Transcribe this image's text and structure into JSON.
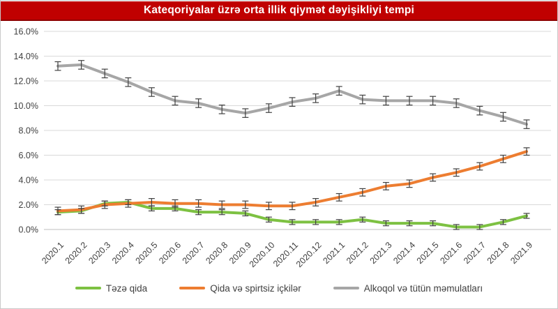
{
  "title": "Kateqoriyalar üzrə orta illik qiymət dəyişikliyi tempi",
  "colors": {
    "title_bg": "#c00000",
    "title_text": "#ffffff",
    "grid": "#d9d9d9",
    "zero_line": "#bfbfbf",
    "axis_text": "#404040",
    "error_bar": "#404040"
  },
  "chart_data": {
    "type": "line",
    "title": "Kateqoriyalar üzrə orta illik qiymət dəyişikliyi tempi",
    "xlabel": "",
    "ylabel": "",
    "ylim": [
      0,
      16
    ],
    "ytick_step": 2,
    "ytick_labels": [
      "0.0%",
      "2.0%",
      "4.0%",
      "6.0%",
      "8.0%",
      "10.0%",
      "12.0%",
      "14.0%",
      "16.0%"
    ],
    "grid": true,
    "legend_position": "bottom",
    "categories": [
      "2020.1",
      "2020.2",
      "2020.3",
      "2020.4",
      "2020.5",
      "2020.6",
      "2020.7",
      "2020.8",
      "2020.9",
      "2020.10",
      "2020.11",
      "2020.12",
      "2021.1",
      "2021.2",
      "2021.3",
      "2021.4",
      "2021.5",
      "2021.6",
      "2021.7",
      "2021.8",
      "2021.9"
    ],
    "series": [
      {
        "name": "Təzə qida",
        "color": "#7dc142",
        "error": 0.2,
        "values": [
          1.4,
          1.5,
          2.1,
          2.2,
          1.7,
          1.7,
          1.4,
          1.4,
          1.3,
          0.8,
          0.6,
          0.6,
          0.6,
          0.8,
          0.5,
          0.5,
          0.5,
          0.2,
          0.2,
          0.6,
          1.1
        ]
      },
      {
        "name": "Qida və spirtsiz içkilər",
        "color": "#ed7d31",
        "error": 0.3,
        "values": [
          1.5,
          1.6,
          2.0,
          2.1,
          2.2,
          2.1,
          2.1,
          2.0,
          2.0,
          1.9,
          1.9,
          2.2,
          2.6,
          3.0,
          3.5,
          3.7,
          4.2,
          4.6,
          5.1,
          5.7,
          6.3
        ]
      },
      {
        "name": "Alkoqol və tütün məmulatları",
        "color": "#a6a6a6",
        "error": 0.35,
        "values": [
          13.2,
          13.3,
          12.6,
          11.9,
          11.1,
          10.4,
          10.2,
          9.7,
          9.4,
          9.8,
          10.3,
          10.6,
          11.2,
          10.5,
          10.4,
          10.4,
          10.4,
          10.2,
          9.6,
          9.1,
          8.5
        ]
      }
    ]
  }
}
